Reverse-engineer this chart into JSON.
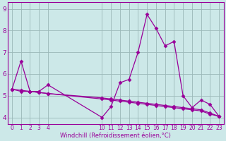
{
  "line1_x": [
    0,
    1,
    2,
    3,
    4,
    10,
    11,
    12,
    13,
    14,
    15,
    16,
    17,
    18,
    19,
    20,
    21,
    22,
    23
  ],
  "line1_y": [
    5.3,
    6.6,
    5.2,
    5.2,
    5.5,
    4.0,
    4.5,
    5.6,
    5.75,
    7.0,
    8.75,
    8.1,
    7.3,
    7.5,
    5.0,
    4.45,
    4.8,
    4.6,
    4.05
  ],
  "line2_x": [
    0,
    1,
    2,
    3,
    4,
    10,
    11,
    12,
    13,
    14,
    15,
    16,
    17,
    18,
    19,
    20,
    21,
    22,
    23
  ],
  "line2_y": [
    5.3,
    5.2,
    5.2,
    5.15,
    5.1,
    4.9,
    4.85,
    4.8,
    4.75,
    4.7,
    4.65,
    4.6,
    4.55,
    4.5,
    4.45,
    4.4,
    4.35,
    4.2,
    4.05
  ],
  "line3_x": [
    0,
    1,
    2,
    3,
    4,
    10,
    11,
    12,
    13,
    14,
    15,
    16,
    17,
    18,
    19,
    20,
    21,
    22,
    23
  ],
  "line3_y": [
    5.3,
    5.25,
    5.2,
    5.15,
    5.1,
    4.85,
    4.8,
    4.75,
    4.7,
    4.65,
    4.6,
    4.55,
    4.5,
    4.45,
    4.4,
    4.35,
    4.3,
    4.15,
    4.05
  ],
  "line_color": "#990099",
  "bg_color": "#cce8e8",
  "grid_color": "#9ab8b8",
  "xlabel": "Windchill (Refroidissement éolien,°C)",
  "xlim": [
    -0.5,
    23.5
  ],
  "ylim": [
    3.7,
    9.3
  ],
  "yticks": [
    4,
    5,
    6,
    7,
    8,
    9
  ],
  "xticks": [
    0,
    1,
    2,
    3,
    4,
    10,
    11,
    12,
    13,
    14,
    15,
    16,
    17,
    18,
    19,
    20,
    21,
    22,
    23
  ],
  "marker": "D",
  "markersize": 2.5,
  "linewidth": 0.9
}
